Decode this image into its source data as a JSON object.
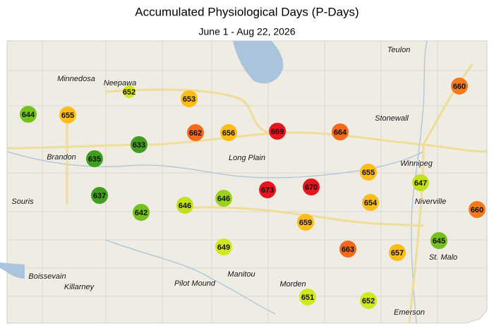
{
  "title": "Accumulated Physiological Days (P-Days)",
  "subtitle": "June 1 - Aug 22, 2026",
  "places": [
    "Teulon",
    "Minnedosa",
    "Neepawa",
    "Stonewall",
    "Winnipeg",
    "Long Plain",
    "Brandon",
    "Souris",
    "Niverville",
    "St. Malo",
    "Boissevain",
    "Killarney",
    "Pilot Mound",
    "Manitou",
    "Morden",
    "Emerson"
  ],
  "stations": [
    {
      "value": 644,
      "color": "#74c01c"
    },
    {
      "value": 655,
      "color": "#fbbd16"
    },
    {
      "value": 652,
      "color": "#d2e81e"
    },
    {
      "value": 653,
      "color": "#fbbd16"
    },
    {
      "value": 662,
      "color": "#f26a1b"
    },
    {
      "value": 656,
      "color": "#fbbd16"
    },
    {
      "value": 669,
      "color": "#e8141e"
    },
    {
      "value": 664,
      "color": "#f26a1b"
    },
    {
      "value": 660,
      "color": "#f37a1f"
    },
    {
      "value": 633,
      "color": "#3f9e1e"
    },
    {
      "value": 635,
      "color": "#3f9e1e"
    },
    {
      "value": 637,
      "color": "#3f9e1e"
    },
    {
      "value": 642,
      "color": "#74c01c"
    },
    {
      "value": 646,
      "color": "#c2e01e"
    },
    {
      "value": 646,
      "color": "#9ad21e"
    },
    {
      "value": 673,
      "color": "#e8141e"
    },
    {
      "value": 670,
      "color": "#e8141e"
    },
    {
      "value": 655,
      "color": "#fbbd16"
    },
    {
      "value": 647,
      "color": "#c2e01e"
    },
    {
      "value": 654,
      "color": "#fbbd16"
    },
    {
      "value": 659,
      "color": "#fbbd16"
    },
    {
      "value": 660,
      "color": "#f37a1f"
    },
    {
      "value": 649,
      "color": "#d2e81e"
    },
    {
      "value": 663,
      "color": "#f26a1b"
    },
    {
      "value": 657,
      "color": "#fbbd16"
    },
    {
      "value": 645,
      "color": "#74c01c"
    },
    {
      "value": 651,
      "color": "#d2e81e"
    },
    {
      "value": 652,
      "color": "#d2e81e"
    }
  ]
}
